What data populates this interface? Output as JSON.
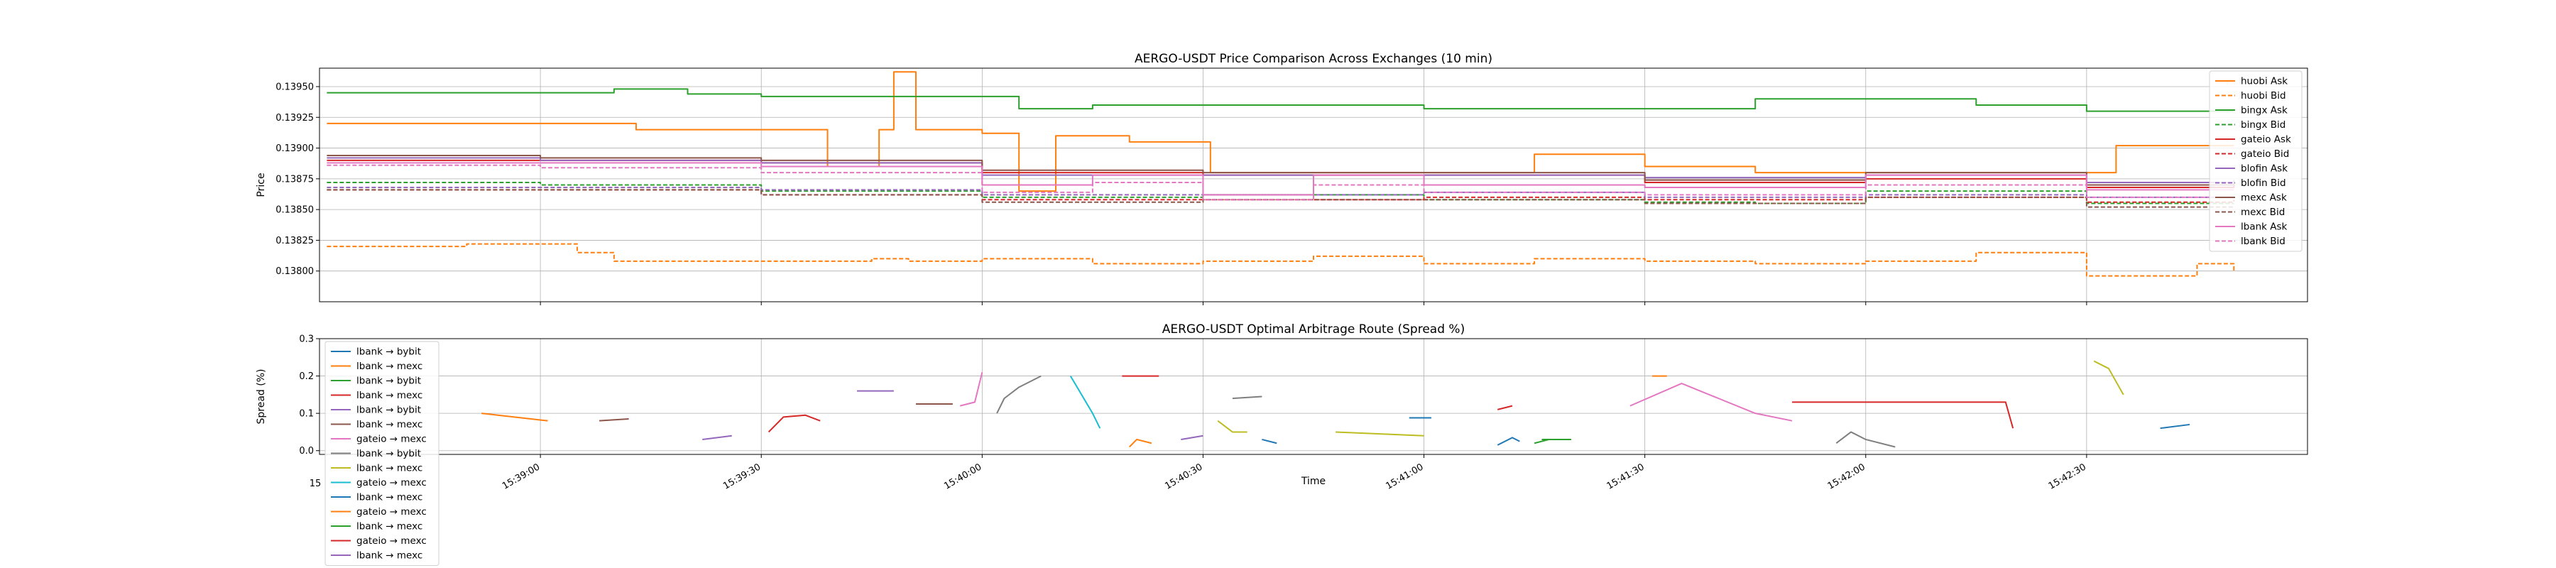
{
  "chart_data": [
    {
      "type": "line",
      "title": "AERGO-USDT Price Comparison Across Exchanges (10 min)",
      "xlabel": "",
      "ylabel": "Price",
      "ylim": [
        0.13775,
        0.13965
      ],
      "yticks": [
        "0.13800",
        "0.13825",
        "0.13850",
        "0.13875",
        "0.13900",
        "0.13925",
        "0.13950"
      ],
      "xlim": [
        "15:38:30",
        "15:43:00"
      ],
      "xticks": [
        "15:39:00",
        "15:39:30",
        "15:40:00",
        "15:40:30",
        "15:41:00",
        "15:41:30",
        "15:42:00",
        "15:42:30"
      ],
      "grid": true,
      "legend_position": "right",
      "series": [
        {
          "name": "huobi Ask",
          "color": "#ff7f0e",
          "dash": false,
          "x": [
            "15:38:31",
            "15:39:10",
            "15:39:13",
            "15:39:33",
            "15:39:39",
            "15:39:46",
            "15:39:48",
            "15:39:51",
            "15:39:54",
            "15:40:00",
            "15:40:05",
            "15:40:10",
            "15:40:20",
            "15:40:31",
            "15:40:45",
            "15:41:00",
            "15:41:15",
            "15:41:30",
            "15:41:45",
            "15:42:00",
            "15:42:20",
            "15:42:34",
            "15:42:50"
          ],
          "values": [
            0.1392,
            0.1392,
            0.13915,
            0.13915,
            0.13885,
            0.13915,
            0.13962,
            0.13915,
            0.13915,
            0.13912,
            0.13865,
            0.1391,
            0.13905,
            0.1388,
            0.1388,
            0.1388,
            0.13895,
            0.13885,
            0.1388,
            0.1388,
            0.1388,
            0.13902,
            0.13902
          ]
        },
        {
          "name": "huobi Bid",
          "color": "#ff7f0e",
          "dash": true,
          "x": [
            "15:38:31",
            "15:38:50",
            "15:39:05",
            "15:39:10",
            "15:39:33",
            "15:39:45",
            "15:39:50",
            "15:40:00",
            "15:40:15",
            "15:40:30",
            "15:40:45",
            "15:41:00",
            "15:41:15",
            "15:41:30",
            "15:41:45",
            "15:42:00",
            "15:42:15",
            "15:42:30",
            "15:42:45",
            "15:42:50"
          ],
          "values": [
            0.1382,
            0.13822,
            0.13815,
            0.13808,
            0.13808,
            0.1381,
            0.13808,
            0.1381,
            0.13806,
            0.13808,
            0.13812,
            0.13806,
            0.1381,
            0.13808,
            0.13806,
            0.13808,
            0.13815,
            0.13796,
            0.13806,
            0.138
          ]
        },
        {
          "name": "bingx Ask",
          "color": "#2ca02c",
          "dash": false,
          "x": [
            "15:38:31",
            "15:39:05",
            "15:39:10",
            "15:39:20",
            "15:39:30",
            "15:39:40",
            "15:40:00",
            "15:40:05",
            "15:40:15",
            "15:40:30",
            "15:40:45",
            "15:41:00",
            "15:41:30",
            "15:41:45",
            "15:42:00",
            "15:42:15",
            "15:42:30",
            "15:42:50"
          ],
          "values": [
            0.13945,
            0.13945,
            0.13948,
            0.13944,
            0.13942,
            0.13942,
            0.13942,
            0.13932,
            0.13935,
            0.13935,
            0.13935,
            0.13932,
            0.13932,
            0.1394,
            0.1394,
            0.13935,
            0.1393,
            0.1393
          ]
        },
        {
          "name": "bingx Bid",
          "color": "#2ca02c",
          "dash": true,
          "x": [
            "15:38:31",
            "15:39:00",
            "15:39:30",
            "15:40:00",
            "15:40:30",
            "15:41:00",
            "15:41:30",
            "15:41:45",
            "15:42:00",
            "15:42:30",
            "15:42:50"
          ],
          "values": [
            0.13872,
            0.1387,
            0.13865,
            0.1386,
            0.13862,
            0.13858,
            0.13856,
            0.13855,
            0.13865,
            0.13855,
            0.13855
          ]
        },
        {
          "name": "gateio Ask",
          "color": "#d62728",
          "dash": false,
          "x": [
            "15:38:31",
            "15:39:00",
            "15:39:30",
            "15:40:00",
            "15:40:30",
            "15:41:00",
            "15:41:30",
            "15:42:00",
            "15:42:30",
            "15:42:50"
          ],
          "values": [
            0.1389,
            0.1389,
            0.13888,
            0.1388,
            0.13878,
            0.13878,
            0.13872,
            0.13875,
            0.13868,
            0.1387
          ]
        },
        {
          "name": "gateio Bid",
          "color": "#d62728",
          "dash": true,
          "x": [
            "15:38:31",
            "15:39:00",
            "15:39:30",
            "15:40:00",
            "15:40:30",
            "15:41:00",
            "15:41:30",
            "15:42:00",
            "15:42:30",
            "15:42:50"
          ],
          "values": [
            0.13866,
            0.13866,
            0.13862,
            0.13858,
            0.13858,
            0.1386,
            0.13858,
            0.1386,
            0.13856,
            0.13858
          ]
        },
        {
          "name": "blofin Ask",
          "color": "#9467bd",
          "dash": false,
          "x": [
            "15:38:31",
            "15:39:00",
            "15:39:30",
            "15:40:00",
            "15:40:30",
            "15:41:00",
            "15:41:30",
            "15:42:00",
            "15:42:30",
            "15:42:50"
          ],
          "values": [
            0.13892,
            0.1389,
            0.13888,
            0.13878,
            0.13878,
            0.13878,
            0.13876,
            0.13878,
            0.13872,
            0.13874
          ]
        },
        {
          "name": "blofin Bid",
          "color": "#9467bd",
          "dash": true,
          "x": [
            "15:38:31",
            "15:39:00",
            "15:39:30",
            "15:40:00",
            "15:40:30",
            "15:41:00",
            "15:41:30",
            "15:42:00",
            "15:42:30",
            "15:42:50"
          ],
          "values": [
            0.13868,
            0.13868,
            0.13866,
            0.13862,
            0.13862,
            0.13864,
            0.1386,
            0.13862,
            0.1386,
            0.1386
          ]
        },
        {
          "name": "mexc Ask",
          "color": "#8c564b",
          "dash": false,
          "x": [
            "15:38:31",
            "15:39:00",
            "15:39:30",
            "15:40:00",
            "15:40:30",
            "15:41:00",
            "15:41:30",
            "15:42:00",
            "15:42:30",
            "15:42:50"
          ],
          "values": [
            0.13894,
            0.13892,
            0.1389,
            0.13882,
            0.1388,
            0.1388,
            0.13874,
            0.1388,
            0.1387,
            0.13872
          ]
        },
        {
          "name": "mexc Bid",
          "color": "#8c564b",
          "dash": true,
          "x": [
            "15:38:31",
            "15:39:00",
            "15:39:30",
            "15:40:00",
            "15:40:30",
            "15:41:00",
            "15:41:30",
            "15:42:00",
            "15:42:30",
            "15:42:50"
          ],
          "values": [
            0.13866,
            0.13866,
            0.13862,
            0.13856,
            0.13858,
            0.13858,
            0.13855,
            0.1386,
            0.13852,
            0.13852
          ]
        },
        {
          "name": "lbank Ask",
          "color": "#e377c2",
          "dash": false,
          "x": [
            "15:38:31",
            "15:39:00",
            "15:39:30",
            "15:40:00",
            "15:40:15",
            "15:40:30",
            "15:40:45",
            "15:41:00",
            "15:41:30",
            "15:42:00",
            "15:42:30",
            "15:42:50"
          ],
          "values": [
            0.13888,
            0.13888,
            0.13885,
            0.1387,
            0.13878,
            0.13862,
            0.13878,
            0.1387,
            0.13868,
            0.13878,
            0.13866,
            0.13866
          ]
        },
        {
          "name": "lbank Bid",
          "color": "#e377c2",
          "dash": true,
          "x": [
            "15:38:31",
            "15:39:00",
            "15:39:30",
            "15:40:00",
            "15:40:15",
            "15:40:30",
            "15:40:45",
            "15:41:00",
            "15:41:30",
            "15:42:00",
            "15:42:30",
            "15:42:50"
          ],
          "values": [
            0.13886,
            0.13884,
            0.1388,
            0.13864,
            0.13872,
            0.13858,
            0.1387,
            0.13864,
            0.13862,
            0.1387,
            0.1386,
            0.1386
          ]
        }
      ]
    },
    {
      "type": "line",
      "title": "AERGO-USDT Optimal Arbitrage Route (Spread %)",
      "xlabel": "Time",
      "ylabel": "Spread (%)",
      "ylim": [
        -0.01,
        0.3
      ],
      "yticks": [
        "0.0",
        "0.1",
        "0.2",
        "0.3"
      ],
      "xlim": [
        "15:38:30",
        "15:43:00"
      ],
      "xticks": [
        "15:39:00",
        "15:39:30",
        "15:40:00",
        "15:40:30",
        "15:41:00",
        "15:41:30",
        "15:42:00",
        "15:42:30"
      ],
      "xticks_overflow_label": "15",
      "grid": true,
      "legend_position": "upper left (overflowing below axes)",
      "series": [
        {
          "name": "lbank → bybit",
          "color": "#1f77b4",
          "segments": [
            {
              "x": [
                "15:40:58",
                "15:41:01"
              ],
              "values": [
                0.088,
                0.088
              ]
            },
            {
              "x": [
                "15:41:10",
                "15:41:12",
                "15:41:13"
              ],
              "values": [
                0.015,
                0.035,
                0.025
              ]
            }
          ]
        },
        {
          "name": "lbank → mexc",
          "color": "#ff7f0e",
          "segments": [
            {
              "x": [
                "15:38:52",
                "15:39:01"
              ],
              "values": [
                0.1,
                0.08
              ]
            },
            {
              "x": [
                "15:41:31",
                "15:41:33"
              ],
              "values": [
                0.2,
                0.2
              ]
            }
          ]
        },
        {
          "name": "lbank → bybit",
          "color": "#2ca02c",
          "segments": [
            {
              "x": [
                "15:41:15",
                "15:41:17"
              ],
              "values": [
                0.02,
                0.03
              ]
            }
          ]
        },
        {
          "name": "lbank → mexc",
          "color": "#d62728",
          "segments": [
            {
              "x": [
                "15:39:31",
                "15:39:33",
                "15:39:36",
                "15:39:38"
              ],
              "values": [
                0.05,
                0.09,
                0.095,
                0.08
              ]
            },
            {
              "x": [
                "15:40:19",
                "15:40:24"
              ],
              "values": [
                0.2,
                0.2
              ]
            }
          ]
        },
        {
          "name": "lbank → bybit",
          "color": "#9467bd",
          "segments": [
            {
              "x": [
                "15:39:43",
                "15:39:48"
              ],
              "values": [
                0.16,
                0.16
              ]
            },
            {
              "x": [
                "15:40:27",
                "15:40:30"
              ],
              "values": [
                0.03,
                0.04
              ]
            }
          ]
        },
        {
          "name": "lbank → mexc",
          "color": "#8c564b",
          "segments": [
            {
              "x": [
                "15:39:08",
                "15:39:12"
              ],
              "values": [
                0.08,
                0.085
              ]
            },
            {
              "x": [
                "15:39:51",
                "15:39:56"
              ],
              "values": [
                0.125,
                0.125
              ]
            }
          ]
        },
        {
          "name": "gateio → mexc",
          "color": "#e377c2",
          "segments": [
            {
              "x": [
                "15:39:57",
                "15:39:59",
                "15:40:00"
              ],
              "values": [
                0.12,
                0.13,
                0.21
              ]
            },
            {
              "x": [
                "15:41:28",
                "15:41:35",
                "15:41:40",
                "15:41:45",
                "15:41:50"
              ],
              "values": [
                0.12,
                0.18,
                0.14,
                0.1,
                0.08
              ]
            }
          ]
        },
        {
          "name": "lbank → bybit",
          "color": "#7f7f7f",
          "segments": [
            {
              "x": [
                "15:40:02",
                "15:40:03",
                "15:40:05",
                "15:40:08"
              ],
              "values": [
                0.1,
                0.14,
                0.17,
                0.2
              ]
            },
            {
              "x": [
                "15:40:34",
                "15:40:38"
              ],
              "values": [
                0.14,
                0.145
              ]
            },
            {
              "x": [
                "15:41:56",
                "15:41:58",
                "15:42:00",
                "15:42:04"
              ],
              "values": [
                0.02,
                0.05,
                0.03,
                0.01
              ]
            }
          ]
        },
        {
          "name": "lbank → mexc",
          "color": "#bcbd22",
          "segments": [
            {
              "x": [
                "15:40:32",
                "15:40:34",
                "15:40:36"
              ],
              "values": [
                0.08,
                0.05,
                0.05
              ]
            },
            {
              "x": [
                "15:40:48",
                "15:41:00"
              ],
              "values": [
                0.05,
                0.04
              ]
            },
            {
              "x": [
                "15:42:31",
                "15:42:33",
                "15:42:35"
              ],
              "values": [
                0.24,
                0.22,
                0.15
              ]
            }
          ]
        },
        {
          "name": "gateio → mexc",
          "color": "#17becf",
          "segments": [
            {
              "x": [
                "15:40:12",
                "15:40:15",
                "15:40:16"
              ],
              "values": [
                0.2,
                0.1,
                0.06
              ]
            }
          ]
        },
        {
          "name": "lbank → mexc",
          "color": "#1f77b4",
          "segments": [
            {
              "x": [
                "15:40:38",
                "15:40:40"
              ],
              "values": [
                0.03,
                0.02
              ]
            },
            {
              "x": [
                "15:42:40",
                "15:42:44"
              ],
              "values": [
                0.06,
                0.07
              ]
            }
          ]
        },
        {
          "name": "gateio → mexc",
          "color": "#ff7f0e",
          "segments": [
            {
              "x": [
                "15:40:20",
                "15:40:21",
                "15:40:23"
              ],
              "values": [
                0.01,
                0.03,
                0.02
              ]
            }
          ]
        },
        {
          "name": "lbank → mexc",
          "color": "#2ca02c",
          "segments": [
            {
              "x": [
                "15:41:16",
                "15:41:20"
              ],
              "values": [
                0.03,
                0.03
              ]
            }
          ]
        },
        {
          "name": "gateio → mexc",
          "color": "#d62728",
          "segments": [
            {
              "x": [
                "15:41:10",
                "15:41:12"
              ],
              "values": [
                0.11,
                0.12
              ]
            },
            {
              "x": [
                "15:41:50",
                "15:42:19",
                "15:42:20"
              ],
              "values": [
                0.13,
                0.13,
                0.06
              ]
            }
          ]
        },
        {
          "name": "lbank → mexc",
          "color": "#9467bd",
          "segments": [
            {
              "x": [
                "15:39:22",
                "15:39:26"
              ],
              "values": [
                0.03,
                0.04
              ]
            }
          ]
        }
      ]
    }
  ]
}
